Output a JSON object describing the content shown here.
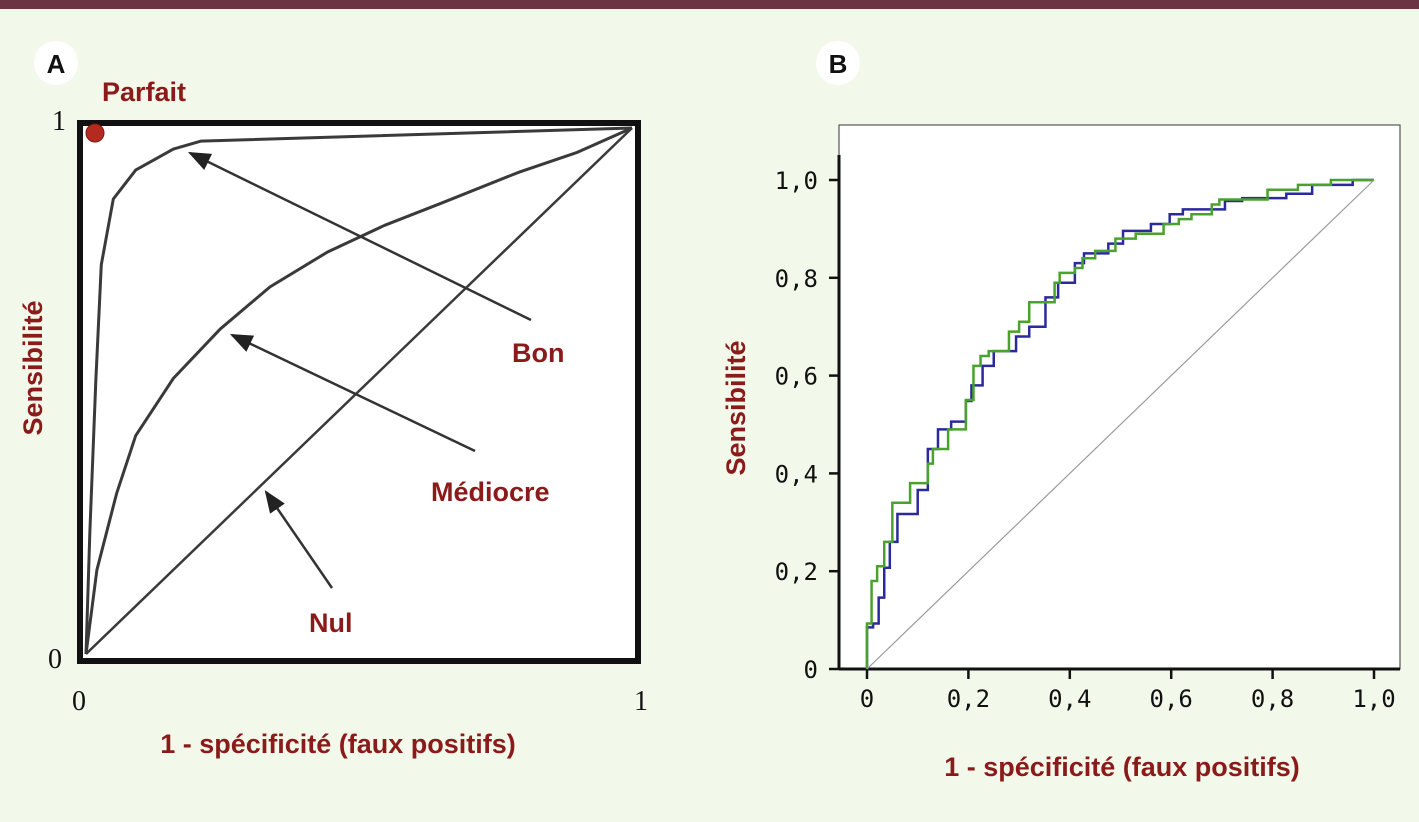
{
  "colors": {
    "topbar": "#6b3442",
    "background": "#f3f9ea",
    "label": "#8b1a1a",
    "blue": "#2b2a9c",
    "green": "#4aa12e",
    "diagonal": "#9a9a9a"
  },
  "chart_data": [
    {
      "panel": "A",
      "type": "line",
      "title": "",
      "xlabel": "1 - spécificité (faux positifs)",
      "ylabel": "Sensibilité",
      "xlim": [
        0,
        1
      ],
      "ylim": [
        0,
        1
      ],
      "xticks": [
        "0",
        "1"
      ],
      "yticks": [
        "0",
        "1"
      ],
      "perfect_point": {
        "label": "Parfait",
        "x": 0,
        "y": 1
      },
      "series": [
        {
          "name": "Bon",
          "x": [
            0,
            0.007,
            0.018,
            0.028,
            0.05,
            0.091,
            0.16,
            0.21,
            1
          ],
          "y": [
            0,
            0.23,
            0.52,
            0.74,
            0.865,
            0.92,
            0.96,
            0.975,
            1
          ]
        },
        {
          "name": "Médiocre",
          "x": [
            0,
            0.02,
            0.056,
            0.091,
            0.16,
            0.246,
            0.337,
            0.442,
            0.547,
            0.653,
            0.793,
            0.898,
            1
          ],
          "y": [
            0,
            0.16,
            0.305,
            0.415,
            0.524,
            0.618,
            0.698,
            0.764,
            0.815,
            0.858,
            0.916,
            0.953,
            1
          ]
        },
        {
          "name": "Nul",
          "x": [
            0,
            1
          ],
          "y": [
            0,
            1
          ]
        }
      ],
      "annotations": [
        "Parfait",
        "Bon",
        "Médiocre",
        "Nul"
      ]
    },
    {
      "panel": "B",
      "type": "line",
      "title": "",
      "xlabel": "1 - spécificité (faux positifs)",
      "ylabel": "Sensibilité",
      "xlim": [
        0,
        1
      ],
      "ylim": [
        0,
        1
      ],
      "xticks": [
        "0",
        "0,2",
        "0,4",
        "0,6",
        "0,8",
        "1,0"
      ],
      "yticks": [
        "0",
        "0,2",
        "0,4",
        "0,6",
        "0,8",
        "1,0"
      ],
      "series": [
        {
          "name": "blue",
          "x": [
            0,
            0.012,
            0.023,
            0.034,
            0.045,
            0.06,
            0.085,
            0.1,
            0.12,
            0.14,
            0.166,
            0.195,
            0.206,
            0.228,
            0.25,
            0.294,
            0.32,
            0.352,
            0.377,
            0.41,
            0.428,
            0.476,
            0.505,
            0.56,
            0.597,
            0.623,
            0.706,
            0.74,
            0.827,
            0.878,
            0.958,
            1
          ],
          "y": [
            0,
            0.085,
            0.093,
            0.146,
            0.207,
            0.26,
            0.317,
            0.317,
            0.366,
            0.45,
            0.49,
            0.506,
            0.548,
            0.58,
            0.62,
            0.65,
            0.68,
            0.7,
            0.76,
            0.79,
            0.83,
            0.85,
            0.87,
            0.896,
            0.91,
            0.93,
            0.94,
            0.957,
            0.963,
            0.972,
            0.99,
            1
          ]
        },
        {
          "name": "green",
          "x": [
            0,
            0.009,
            0.02,
            0.034,
            0.05,
            0.085,
            0.1,
            0.12,
            0.13,
            0.16,
            0.195,
            0.21,
            0.224,
            0.24,
            0.28,
            0.3,
            0.32,
            0.34,
            0.37,
            0.38,
            0.41,
            0.425,
            0.45,
            0.49,
            0.53,
            0.585,
            0.615,
            0.64,
            0.68,
            0.695,
            0.725,
            0.79,
            0.85,
            0.88,
            0.915,
            0.95,
            1
          ],
          "y": [
            0,
            0.093,
            0.18,
            0.21,
            0.26,
            0.34,
            0.38,
            0.38,
            0.42,
            0.45,
            0.49,
            0.55,
            0.62,
            0.64,
            0.65,
            0.69,
            0.71,
            0.75,
            0.75,
            0.79,
            0.81,
            0.82,
            0.84,
            0.855,
            0.88,
            0.89,
            0.91,
            0.92,
            0.93,
            0.95,
            0.96,
            0.96,
            0.98,
            0.99,
            0.99,
            1.0,
            1
          ]
        },
        {
          "name": "diagonal",
          "x": [
            0,
            1
          ],
          "y": [
            0,
            1
          ]
        }
      ]
    }
  ]
}
